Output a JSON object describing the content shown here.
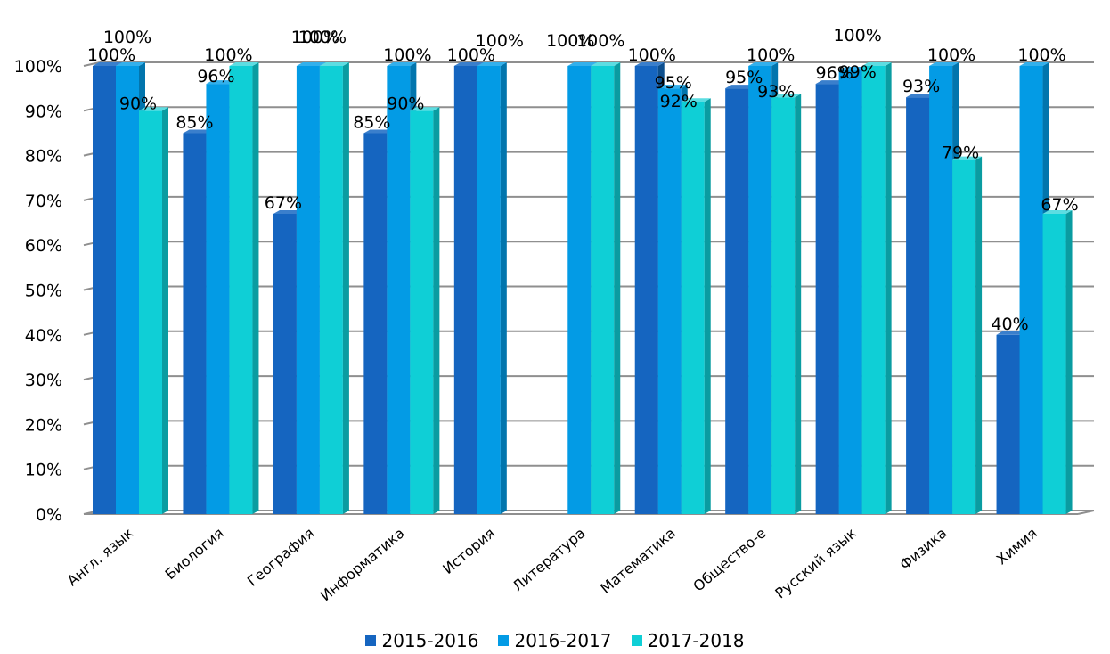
{
  "chart_data": {
    "type": "bar",
    "title": "",
    "xlabel": "",
    "ylabel": "",
    "ylim": [
      0,
      100
    ],
    "y_ticks": [
      "0%",
      "10%",
      "20%",
      "30%",
      "40%",
      "50%",
      "60%",
      "70%",
      "80%",
      "90%",
      "100%"
    ],
    "categories": [
      "Англ. язык",
      "Биология",
      "География",
      "Информатика",
      "История",
      "Литература",
      "Математика",
      "Общество-е",
      "Русский язык",
      "Физика",
      "Химия"
    ],
    "series": [
      {
        "name": "2015-2016",
        "values": [
          100,
          85,
          67,
          85,
          100,
          null,
          100,
          95,
          96,
          93,
          40
        ],
        "labels": [
          "100%",
          "85%",
          "67%",
          "85%",
          "100%",
          "",
          "100%",
          "95%",
          "96%",
          "93%",
          "40%"
        ]
      },
      {
        "name": "2016-2017",
        "values": [
          100,
          96,
          100,
          100,
          100,
          100,
          95,
          100,
          99,
          100,
          100
        ],
        "labels": [
          "100%",
          "96%",
          "100%",
          "100%",
          "100%",
          "100%",
          "95%",
          "100%",
          "99%",
          "100%",
          "100%"
        ]
      },
      {
        "name": "2017-2018",
        "values": [
          90,
          100,
          100,
          90,
          null,
          100,
          92,
          93,
          100,
          79,
          67
        ],
        "labels": [
          "90%",
          "100%",
          "100%",
          "90%",
          "",
          "100%",
          "92%",
          "93%",
          "100%",
          "79%",
          "67%"
        ]
      }
    ],
    "colors": {
      "2015-2016": {
        "front": "#1565C0",
        "side": "#0D4F8E",
        "top": "#3A7FCC"
      },
      "2016-2017": {
        "front": "#039BE5",
        "side": "#0275AD",
        "top": "#33B0EC"
      },
      "2017-2018": {
        "front": "#0FCFD6",
        "side": "#0A9CA1",
        "top": "#5CDDE2"
      }
    },
    "grid": true,
    "legend_position": "bottom"
  },
  "legend": [
    {
      "label": "2015-2016",
      "color": "#1565C0"
    },
    {
      "label": "2016-2017",
      "color": "#039BE5"
    },
    {
      "label": "2017-2018",
      "color": "#0FCFD6"
    }
  ]
}
